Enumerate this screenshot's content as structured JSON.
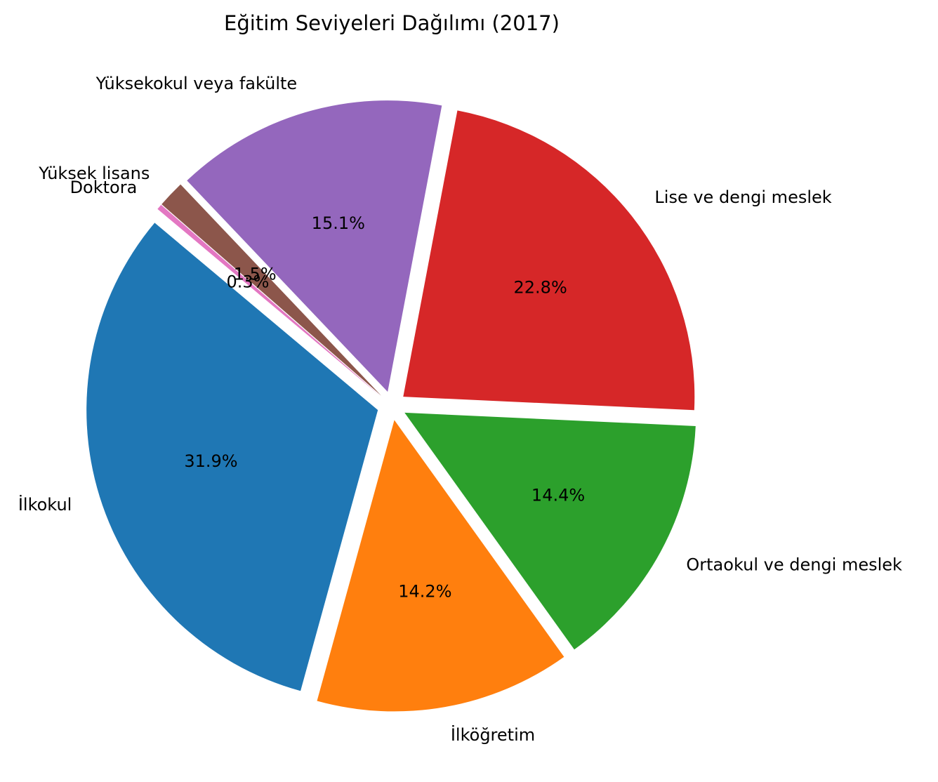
{
  "chart_data": {
    "type": "pie",
    "title": "Eğitim Seviyeleri Dağılımı (2017)",
    "start_angle_deg": 140,
    "direction": "counterclockwise",
    "exploded": true,
    "slices": [
      {
        "label": "İlkokul",
        "value": 31.9,
        "pct_label": "31.9%",
        "color": "#1f77b4"
      },
      {
        "label": "İlköğretim",
        "value": 14.2,
        "pct_label": "14.2%",
        "color": "#ff7f0e"
      },
      {
        "label": "Ortaokul ve dengi meslek",
        "value": 14.4,
        "pct_label": "14.4%",
        "color": "#2ca02c"
      },
      {
        "label": "Lise ve dengi meslek",
        "value": 22.8,
        "pct_label": "22.8%",
        "color": "#d62728"
      },
      {
        "label": "Yüksekokul veya fakülte",
        "value": 15.1,
        "pct_label": "15.1%",
        "color": "#9467bd"
      },
      {
        "label": "Yüksek lisans",
        "value": 1.5,
        "pct_label": "1.5%",
        "color": "#8c564b"
      },
      {
        "label": "Doktora",
        "value": 0.3,
        "pct_label": "0.3%",
        "color": "#e377c2"
      }
    ]
  }
}
